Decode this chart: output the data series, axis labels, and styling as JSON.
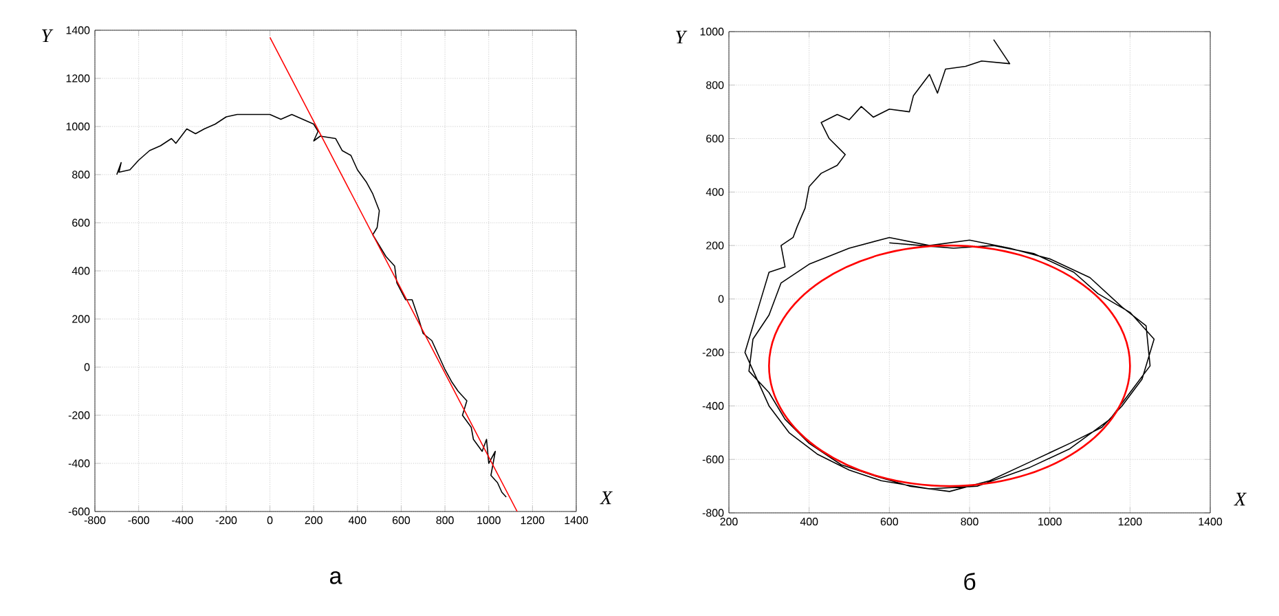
{
  "chart_data": [
    {
      "type": "line",
      "xlabel": "X",
      "ylabel": "Y",
      "annotations": [
        "а"
      ],
      "xlim": [
        -800,
        1400
      ],
      "ylim": [
        -600,
        1400
      ],
      "xticks": [
        -800,
        -600,
        -400,
        -200,
        0,
        200,
        400,
        600,
        800,
        1000,
        1200,
        1400
      ],
      "yticks": [
        -600,
        -400,
        -200,
        0,
        200,
        400,
        600,
        800,
        1000,
        1200,
        1400
      ],
      "grid": true,
      "line_style": "solid",
      "marker": "none",
      "series": [
        {
          "color": "#000000",
          "x": [
            -700,
            -680,
            -690,
            -640,
            -600,
            -550,
            -500,
            -450,
            -430,
            -380,
            -340,
            -300,
            -250,
            -200,
            -150,
            -50,
            0,
            50,
            100,
            150,
            200,
            220,
            200,
            230,
            300,
            330,
            370,
            400,
            440,
            470,
            500,
            490,
            470,
            530,
            570,
            580,
            620,
            650,
            680,
            700,
            740,
            770,
            800,
            830,
            860,
            900,
            880,
            920,
            930,
            970,
            990,
            1000,
            1030,
            1010,
            1040,
            1060,
            1080
          ],
          "values": [
            800,
            850,
            810,
            820,
            860,
            900,
            920,
            950,
            930,
            990,
            970,
            990,
            1010,
            1040,
            1050,
            1050,
            1050,
            1030,
            1050,
            1030,
            1010,
            980,
            940,
            960,
            950,
            900,
            880,
            820,
            770,
            720,
            650,
            580,
            550,
            460,
            420,
            350,
            280,
            280,
            200,
            140,
            110,
            50,
            -10,
            -60,
            -100,
            -140,
            -200,
            -250,
            -300,
            -350,
            -300,
            -400,
            -350,
            -450,
            -480,
            -520,
            -540
          ]
        },
        {
          "color": "#ff0000",
          "x": [
            0,
            1130
          ],
          "values": [
            1370,
            -600
          ]
        }
      ]
    },
    {
      "type": "line",
      "xlabel": "X",
      "ylabel": "Y",
      "annotations": [
        "б"
      ],
      "xlim": [
        200,
        1400
      ],
      "ylim": [
        -800,
        1000
      ],
      "xticks": [
        200,
        400,
        600,
        800,
        1000,
        1200,
        1400
      ],
      "yticks": [
        -800,
        -600,
        -400,
        -200,
        0,
        200,
        400,
        600,
        800,
        1000
      ],
      "grid": true,
      "line_style": "solid",
      "marker": "none",
      "series": [
        {
          "color": "#000000",
          "x": [
            860,
            900,
            830,
            790,
            740,
            720,
            700,
            660,
            650,
            600,
            560,
            530,
            500,
            470,
            430,
            450,
            490,
            470,
            430,
            400,
            390,
            370,
            360,
            330,
            340,
            300,
            280,
            260,
            240,
            270,
            300,
            350,
            420,
            500,
            580,
            700,
            820,
            950,
            1050,
            1150,
            1200,
            1250,
            1240,
            1180,
            1100,
            1000,
            900,
            800,
            700,
            600,
            500,
            400,
            330,
            300,
            260,
            250,
            300,
            340,
            400,
            480,
            560,
            650,
            750,
            850,
            950,
            1050,
            1130,
            1180,
            1230,
            1260,
            1200,
            1120,
            1060,
            960,
            860,
            760,
            680,
            600
          ],
          "values": [
            970,
            880,
            890,
            870,
            860,
            770,
            840,
            760,
            700,
            710,
            680,
            720,
            670,
            690,
            660,
            600,
            540,
            500,
            470,
            420,
            340,
            270,
            230,
            200,
            120,
            100,
            0,
            -100,
            -200,
            -300,
            -400,
            -500,
            -580,
            -640,
            -680,
            -710,
            -700,
            -630,
            -560,
            -450,
            -350,
            -250,
            -100,
            -30,
            80,
            150,
            190,
            220,
            200,
            230,
            190,
            130,
            60,
            -60,
            -150,
            -270,
            -350,
            -450,
            -540,
            -620,
            -660,
            -700,
            -720,
            -680,
            -610,
            -540,
            -480,
            -400,
            -300,
            -150,
            -50,
            20,
            100,
            170,
            200,
            190,
            200,
            210
          ]
        }
      ]
    }
  ]
}
